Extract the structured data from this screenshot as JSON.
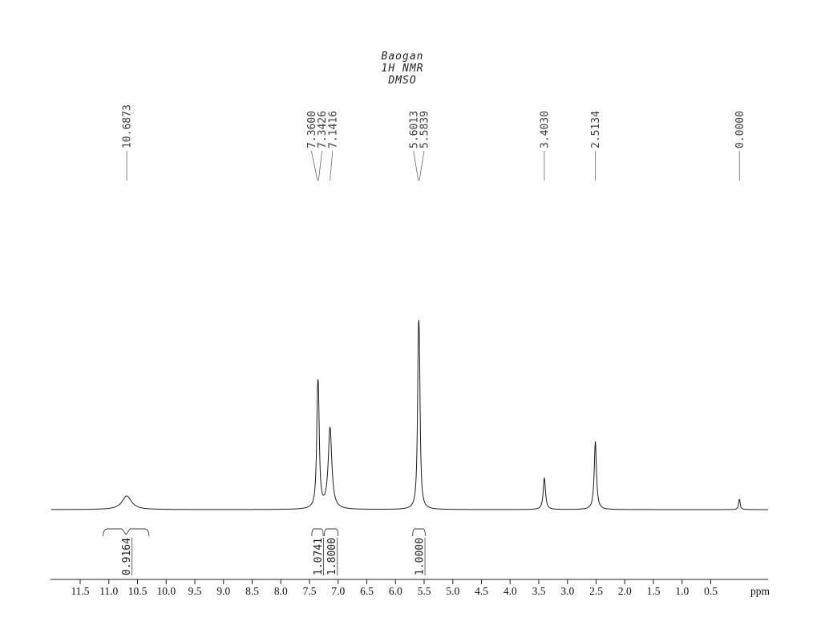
{
  "chart_data": {
    "type": "line",
    "title_lines": [
      "Baogan",
      "1H NMR",
      "DMSO"
    ],
    "xlabel": "ppm",
    "axis_range_ppm": [
      12.0,
      -0.5
    ],
    "x_ticks": [
      "11.5",
      "11.0",
      "10.5",
      "10.0",
      "9.5",
      "9.0",
      "8.5",
      "8.0",
      "7.5",
      "7.0",
      "6.5",
      "6.0",
      "5.5",
      "5.0",
      "4.5",
      "4.0",
      "3.5",
      "3.0",
      "2.5",
      "2.0",
      "1.5",
      "1.0",
      "0.5"
    ],
    "peak_label_groups": [
      {
        "labels": [
          "10.6873"
        ]
      },
      {
        "labels": [
          "7.3600",
          "7.3426",
          "7.1416"
        ]
      },
      {
        "labels": [
          "5.6013",
          "5.5839"
        ]
      },
      {
        "labels": [
          "3.4030"
        ]
      },
      {
        "labels": [
          "2.5134"
        ]
      },
      {
        "labels": [
          "0.0000"
        ]
      }
    ],
    "peaks": [
      {
        "ppm": 10.6873,
        "rel_height": 0.077,
        "hwhm_ppm": 0.1
      },
      {
        "ppm": 7.36,
        "rel_height": 0.43,
        "hwhm_ppm": 0.02
      },
      {
        "ppm": 7.3426,
        "rel_height": 0.43,
        "hwhm_ppm": 0.02
      },
      {
        "ppm": 7.1416,
        "rel_height": 0.46,
        "hwhm_ppm": 0.037
      },
      {
        "ppm": 5.6013,
        "rel_height": 0.66,
        "hwhm_ppm": 0.018
      },
      {
        "ppm": 5.5839,
        "rel_height": 0.66,
        "hwhm_ppm": 0.018
      },
      {
        "ppm": 3.403,
        "rel_height": 0.18,
        "hwhm_ppm": 0.023
      },
      {
        "ppm": 2.5134,
        "rel_height": 0.385,
        "hwhm_ppm": 0.023
      },
      {
        "ppm": 0.0,
        "rel_height": 0.059,
        "hwhm_ppm": 0.016
      }
    ],
    "integrals": [
      {
        "from_ppm": 11.1,
        "to_ppm": 10.3,
        "value": "0.9164"
      },
      {
        "from_ppm": 7.46,
        "to_ppm": 7.26,
        "value": "1.0741"
      },
      {
        "from_ppm": 7.24,
        "to_ppm": 7.0,
        "value": "1.8000"
      },
      {
        "from_ppm": 5.7,
        "to_ppm": 5.48,
        "value": "1.0000"
      }
    ]
  },
  "colors": {
    "background": "#ffffff",
    "curve": "#1c1c1c",
    "labels": "#3c3c3c"
  }
}
